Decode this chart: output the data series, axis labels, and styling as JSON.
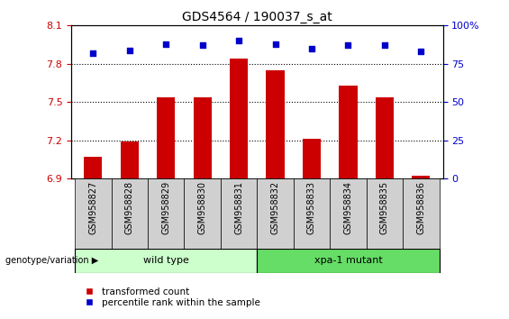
{
  "title": "GDS4564 / 190037_s_at",
  "categories": [
    "GSM958827",
    "GSM958828",
    "GSM958829",
    "GSM958830",
    "GSM958831",
    "GSM958832",
    "GSM958833",
    "GSM958834",
    "GSM958835",
    "GSM958836"
  ],
  "bar_values": [
    7.07,
    7.19,
    7.54,
    7.54,
    7.84,
    7.75,
    7.21,
    7.63,
    7.54,
    6.92
  ],
  "scatter_values": [
    82,
    84,
    88,
    87,
    90,
    88,
    85,
    87,
    87,
    83
  ],
  "ylim_left": [
    6.9,
    8.1
  ],
  "ylim_right": [
    0,
    100
  ],
  "yticks_left": [
    6.9,
    7.2,
    7.5,
    7.8,
    8.1
  ],
  "yticks_right": [
    0,
    25,
    50,
    75,
    100
  ],
  "bar_color": "#cc0000",
  "scatter_color": "#0000cc",
  "bar_width": 0.5,
  "wild_type_label": "wild type",
  "mutant_label": "xpa-1 mutant",
  "wild_type_color": "#ccffcc",
  "mutant_color": "#66dd66",
  "group_label": "genotype/variation",
  "legend_bar_label": "transformed count",
  "legend_scatter_label": "percentile rank within the sample",
  "left_tick_color": "#cc0000",
  "right_tick_color": "#0000cc",
  "gray_box_color": "#d0d0d0",
  "right_tick_labels": [
    "0",
    "25",
    "50",
    "75",
    "100%"
  ]
}
